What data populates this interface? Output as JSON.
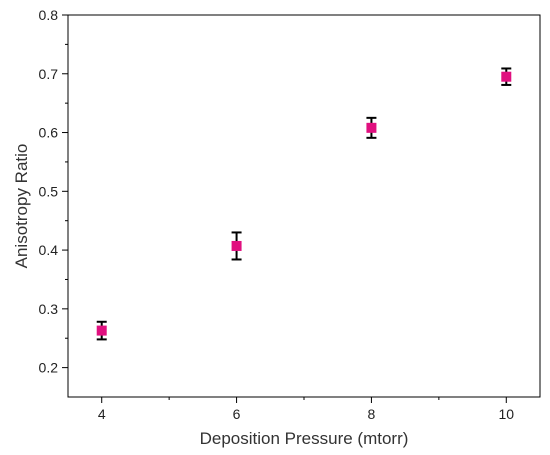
{
  "chart_data": {
    "type": "scatter",
    "xlabel": "Deposition Pressure (mtorr)",
    "ylabel": "Anisotropy Ratio",
    "xlim": [
      3.5,
      10.5
    ],
    "ylim": [
      0.15,
      0.8
    ],
    "x_ticks": [
      4,
      6,
      8,
      10
    ],
    "x_tick_labels": [
      "4",
      "6",
      "8",
      "10"
    ],
    "y_ticks": [
      0.2,
      0.3,
      0.4,
      0.5,
      0.6,
      0.7,
      0.8
    ],
    "y_tick_labels": [
      "0.2",
      "0.3",
      "0.4",
      "0.5",
      "0.6",
      "0.7",
      "0.8"
    ],
    "grid": false,
    "marker_color": "#e0107f",
    "error_bar_color": "#000000",
    "series": [
      {
        "x": [
          4,
          6,
          8,
          10
        ],
        "y": [
          0.263,
          0.407,
          0.608,
          0.695
        ],
        "y_error": [
          0.015,
          0.023,
          0.017,
          0.014
        ]
      }
    ]
  }
}
